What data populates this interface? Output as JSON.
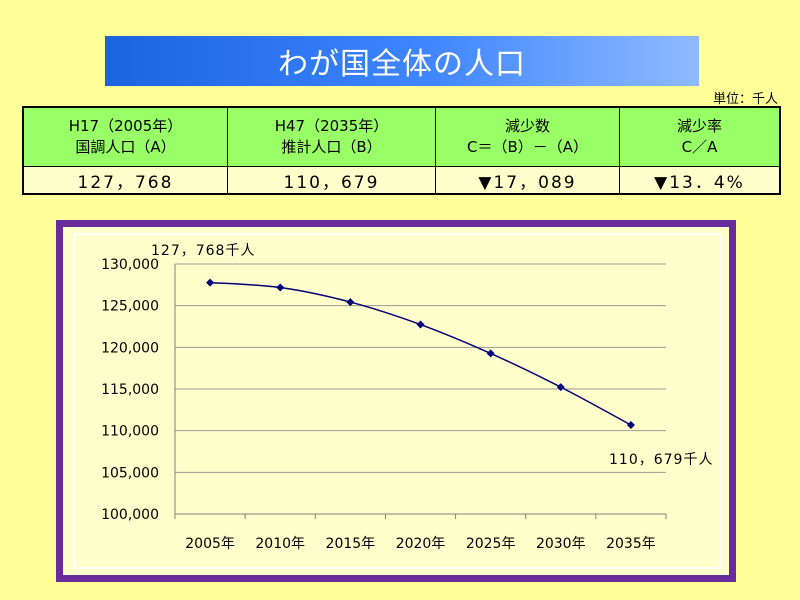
{
  "title": "わが国全体の人口",
  "unit_label": "単位：千人",
  "table": {
    "headers": [
      {
        "line1": "H17（2005年）",
        "line2": "国調人口（A）"
      },
      {
        "line1": "H47（2035年）",
        "line2": "推計人口（B）"
      },
      {
        "line1": "減少数",
        "line2": "C＝（B）－（A）"
      },
      {
        "line1": "減少率",
        "line2": "C／A"
      }
    ],
    "values": [
      "127，768",
      "110，679",
      "▼17，089",
      "▼13．4%"
    ]
  },
  "chart_data": {
    "type": "line",
    "categories": [
      "2005年",
      "2010年",
      "2015年",
      "2020年",
      "2025年",
      "2030年",
      "2035年"
    ],
    "series": [
      {
        "name": "わが国全体の人口",
        "values": [
          127768,
          127176,
          125430,
          122735,
          119270,
          115224,
          110679
        ]
      }
    ],
    "ylim": [
      100000,
      130000
    ],
    "yticks": [
      100000,
      105000,
      110000,
      115000,
      120000,
      125000,
      130000
    ],
    "ytick_labels": [
      "100,000",
      "105,000",
      "110,000",
      "115,000",
      "120,000",
      "125,000",
      "130,000"
    ],
    "grid": true,
    "annotations": [
      "127，768千人",
      "110，679千人"
    ],
    "colors": {
      "line": "#00007a",
      "grid": "#9a9a9a",
      "axis": "#808080"
    }
  }
}
